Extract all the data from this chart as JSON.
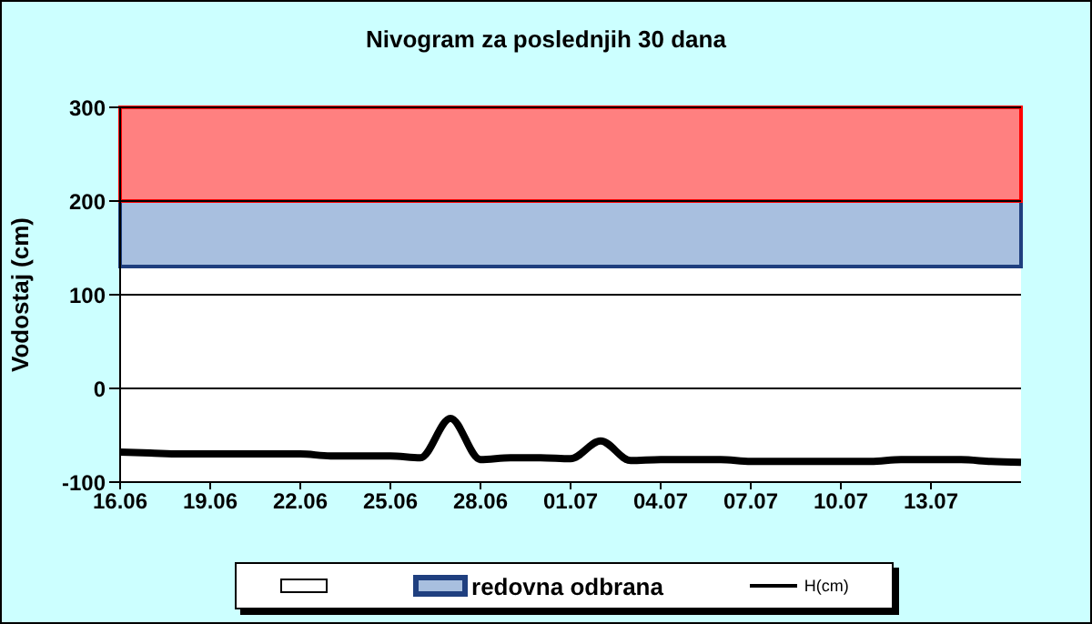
{
  "chart_data": {
    "type": "line",
    "title": "Nivogram za poslednjih 30 dana",
    "ylabel": "Vodostaj (cm)",
    "x": [
      "--06-16",
      "--06-17",
      "--06-18",
      "--06-19",
      "--06-20",
      "--06-21",
      "--06-22",
      "--06-23",
      "--06-24",
      "--06-25",
      "--06-26",
      "--06-27",
      "--06-28",
      "--06-29",
      "--06-30",
      "--07-01",
      "--07-02",
      "--07-03",
      "--07-04",
      "--07-05",
      "--07-06",
      "--07-07",
      "--07-08",
      "--07-09",
      "--07-10",
      "--07-11",
      "--07-12",
      "--07-13",
      "--07-14",
      "--07-15",
      "--07-16"
    ],
    "series": [
      {
        "name": "H(cm)",
        "color": "#000000",
        "values": [
          -68,
          -69,
          -70,
          -70,
          -70,
          -70,
          -70,
          -72,
          -72,
          -72,
          -74,
          -32,
          -76,
          -74,
          -74,
          -75,
          -56,
          -77,
          -76,
          -76,
          -76,
          -78,
          -78,
          -78,
          -78,
          -78,
          -76,
          -76,
          -76,
          -78,
          -79
        ]
      }
    ],
    "xlim": [
      "--06-16",
      "--07-16"
    ],
    "xticks": [
      {
        "value": "--06-16",
        "label": "16.06"
      },
      {
        "value": "--06-19",
        "label": "19.06"
      },
      {
        "value": "--06-22",
        "label": "22.06"
      },
      {
        "value": "--06-25",
        "label": "25.06"
      },
      {
        "value": "--06-28",
        "label": "28.06"
      },
      {
        "value": "--07-01",
        "label": "01.07"
      },
      {
        "value": "--07-04",
        "label": "04.07"
      },
      {
        "value": "--07-07",
        "label": "07.07"
      },
      {
        "value": "--07-10",
        "label": "10.07"
      },
      {
        "value": "--07-13",
        "label": "13.07"
      }
    ],
    "ylim": [
      -100,
      300
    ],
    "yticks": [
      -100,
      0,
      100,
      200,
      300
    ],
    "bands": [
      {
        "axis": "y",
        "from": -100,
        "to": 130,
        "color": "#ffffff"
      },
      {
        "axis": "y",
        "from": 130,
        "to": 200,
        "color": "#a8bfdf",
        "label": "redovna odbrana"
      },
      {
        "axis": "y",
        "from": 200,
        "to": 300,
        "color": "#ff8080"
      }
    ],
    "grid": "y",
    "legend": "bottom",
    "marker": "none",
    "line_style": "solid"
  }
}
